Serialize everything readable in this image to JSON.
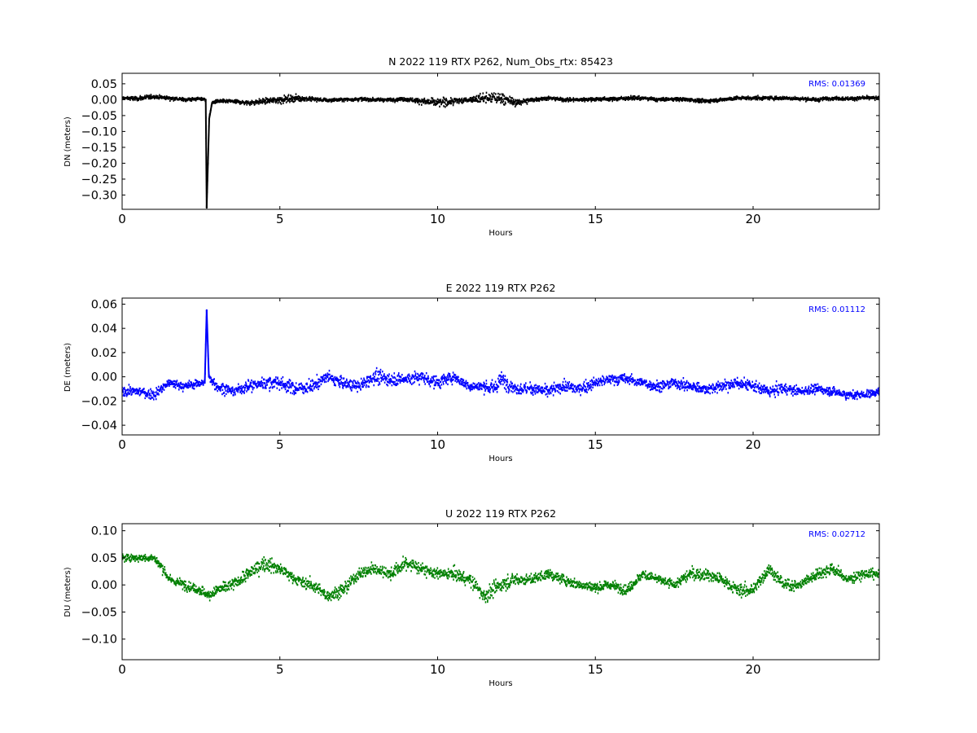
{
  "chart_data": [
    {
      "type": "scatter",
      "title": "N 2022 119 RTX  P262, Num_Obs_rtx: 85423",
      "xlabel": "Hours",
      "ylabel": "DN (meters)",
      "xlim": [
        0,
        24
      ],
      "ylim": [
        -0.345,
        0.083
      ],
      "xticks": [
        0,
        5,
        10,
        15,
        20
      ],
      "yticks": [
        0.05,
        0.0,
        -0.05,
        -0.1,
        -0.15,
        -0.2,
        -0.25,
        -0.3
      ],
      "ytick_labels": [
        "0.05",
        "0.00",
        "−0.05",
        "−0.10",
        "−0.15",
        "−0.20",
        "−0.25",
        "−0.30"
      ],
      "annotation": "RMS:  0.01369",
      "annotation_color": "#0000ff",
      "grid": false,
      "series": [
        {
          "color": "#000000",
          "x": [
            0,
            0.5,
            1,
            1.5,
            2,
            2.5,
            2.65,
            2.68,
            2.72,
            2.76,
            2.85,
            3,
            3.5,
            4,
            4.5,
            5,
            5.5,
            6,
            6.5,
            7,
            7.5,
            8,
            8.5,
            9,
            9.5,
            10,
            10.5,
            11,
            11.5,
            12,
            12.5,
            13,
            13.5,
            14,
            14.5,
            15,
            15.5,
            16,
            16.5,
            17,
            17.5,
            18,
            18.5,
            19,
            19.5,
            20,
            20.5,
            21,
            21.5,
            22,
            22.5,
            23,
            23.5,
            24
          ],
          "y": [
            0.005,
            0.003,
            0.01,
            0.005,
            0.0,
            0.003,
            0.0,
            -0.34,
            -0.2,
            -0.06,
            -0.01,
            -0.005,
            -0.005,
            -0.01,
            -0.005,
            0.0,
            0.005,
            0.002,
            -0.002,
            0.0,
            0.002,
            0.0,
            0.0,
            0.002,
            -0.005,
            -0.01,
            -0.005,
            0.0,
            0.005,
            0.005,
            -0.01,
            0.0,
            0.005,
            0.0,
            0.0,
            0.002,
            0.002,
            0.005,
            0.005,
            0.0,
            0.002,
            0.0,
            -0.005,
            0.0,
            0.005,
            0.005,
            0.005,
            0.005,
            0.003,
            0.0,
            0.005,
            0.003,
            0.005,
            0.005
          ],
          "spread": [
            0.012,
            0.015,
            0.014,
            0.013,
            0.012,
            0.012,
            0.012,
            0.0,
            0.0,
            0.02,
            0.015,
            0.012,
            0.012,
            0.015,
            0.02,
            0.025,
            0.022,
            0.015,
            0.012,
            0.012,
            0.012,
            0.012,
            0.012,
            0.013,
            0.02,
            0.03,
            0.025,
            0.018,
            0.035,
            0.04,
            0.025,
            0.015,
            0.012,
            0.012,
            0.012,
            0.012,
            0.012,
            0.012,
            0.012,
            0.012,
            0.012,
            0.012,
            0.012,
            0.012,
            0.012,
            0.012,
            0.012,
            0.012,
            0.012,
            0.012,
            0.012,
            0.012,
            0.012,
            0.012
          ]
        }
      ]
    },
    {
      "type": "scatter",
      "title": "E 2022 119 RTX  P262",
      "xlabel": "Hours",
      "ylabel": "DE (meters)",
      "xlim": [
        0,
        24
      ],
      "ylim": [
        -0.048,
        0.065
      ],
      "xticks": [
        0,
        5,
        10,
        15,
        20
      ],
      "yticks": [
        0.06,
        0.04,
        0.02,
        0.0,
        -0.02,
        -0.04
      ],
      "ytick_labels": [
        "0.06",
        "0.04",
        "0.02",
        "0.00",
        "−0.02",
        "−0.04"
      ],
      "annotation": "RMS:  0.01112",
      "annotation_color": "#0000ff",
      "grid": false,
      "series": [
        {
          "color": "#0000ff",
          "x": [
            0,
            0.5,
            1,
            1.5,
            2,
            2.5,
            2.62,
            2.68,
            2.75,
            3,
            3.5,
            4,
            4.5,
            5,
            5.5,
            6,
            6.5,
            7,
            7.5,
            8,
            8.5,
            9,
            9.5,
            10,
            10.5,
            11,
            11.5,
            11.8,
            12,
            12.5,
            13,
            13.5,
            14,
            14.5,
            15,
            15.5,
            16,
            16.5,
            17,
            17.5,
            18,
            18.5,
            19,
            19.5,
            20,
            20.5,
            21,
            21.5,
            22,
            22.5,
            23,
            23.5,
            24
          ],
          "y": [
            -0.012,
            -0.012,
            -0.015,
            -0.005,
            -0.008,
            -0.005,
            -0.005,
            0.055,
            0.0,
            -0.008,
            -0.012,
            -0.008,
            -0.005,
            -0.005,
            -0.01,
            -0.008,
            0.0,
            -0.005,
            -0.008,
            0.0,
            -0.002,
            -0.002,
            0.0,
            -0.005,
            0.0,
            -0.008,
            -0.008,
            -0.01,
            -0.002,
            -0.01,
            -0.01,
            -0.012,
            -0.008,
            -0.01,
            -0.005,
            -0.002,
            -0.002,
            -0.005,
            -0.008,
            -0.005,
            -0.008,
            -0.01,
            -0.008,
            -0.005,
            -0.008,
            -0.012,
            -0.01,
            -0.012,
            -0.01,
            -0.012,
            -0.015,
            -0.015,
            -0.012
          ],
          "spread": [
            0.008,
            0.008,
            0.01,
            0.008,
            0.008,
            0.008,
            0.008,
            0.0,
            0.01,
            0.01,
            0.01,
            0.01,
            0.012,
            0.012,
            0.012,
            0.012,
            0.012,
            0.01,
            0.01,
            0.012,
            0.012,
            0.012,
            0.012,
            0.012,
            0.01,
            0.008,
            0.01,
            0.015,
            0.015,
            0.01,
            0.01,
            0.01,
            0.01,
            0.01,
            0.01,
            0.01,
            0.01,
            0.01,
            0.01,
            0.01,
            0.01,
            0.01,
            0.01,
            0.01,
            0.01,
            0.01,
            0.01,
            0.008,
            0.008,
            0.008,
            0.008,
            0.008,
            0.008
          ]
        }
      ]
    },
    {
      "type": "scatter",
      "title": "U 2022 119 RTX  P262",
      "xlabel": "Hours",
      "ylabel": "DU (meters)",
      "xlim": [
        0,
        24
      ],
      "ylim": [
        -0.138,
        0.113
      ],
      "xticks": [
        0,
        5,
        10,
        15,
        20
      ],
      "yticks": [
        0.1,
        0.05,
        0.0,
        -0.05,
        -0.1
      ],
      "ytick_labels": [
        "0.10",
        "0.05",
        "0.00",
        "−0.05",
        "−0.10"
      ],
      "annotation": "RMS:  0.02712",
      "annotation_color": "#0000ff",
      "grid": false,
      "series": [
        {
          "color": "#008000",
          "x": [
            0,
            0.5,
            1,
            1.3,
            1.5,
            2,
            2.5,
            2.75,
            3,
            3.5,
            4,
            4.5,
            5,
            5.5,
            6,
            6.5,
            7,
            7.5,
            8,
            8.5,
            9,
            9.5,
            10,
            10.5,
            11,
            11.5,
            12,
            12.5,
            13,
            13.5,
            14,
            14.5,
            15,
            15.5,
            16,
            16.5,
            17,
            17.5,
            18,
            18.5,
            19,
            19.5,
            20,
            20.5,
            21,
            21.5,
            22,
            22.5,
            23,
            23.5,
            24
          ],
          "y": [
            0.05,
            0.05,
            0.05,
            0.03,
            0.01,
            0.0,
            -0.01,
            -0.02,
            -0.01,
            0.0,
            0.02,
            0.04,
            0.03,
            0.01,
            0.0,
            -0.02,
            -0.01,
            0.02,
            0.03,
            0.02,
            0.04,
            0.03,
            0.02,
            0.02,
            0.01,
            -0.02,
            0.0,
            0.01,
            0.01,
            0.02,
            0.01,
            0.0,
            -0.005,
            0.0,
            -0.01,
            0.02,
            0.01,
            0.0,
            0.02,
            0.02,
            0.01,
            -0.01,
            -0.01,
            0.03,
            0.0,
            0.0,
            0.02,
            0.03,
            0.01,
            0.02,
            0.02
          ],
          "spread": [
            0.015,
            0.015,
            0.015,
            0.02,
            0.02,
            0.02,
            0.02,
            0.02,
            0.025,
            0.025,
            0.025,
            0.03,
            0.025,
            0.02,
            0.025,
            0.025,
            0.025,
            0.025,
            0.025,
            0.025,
            0.03,
            0.025,
            0.02,
            0.025,
            0.025,
            0.035,
            0.03,
            0.025,
            0.02,
            0.02,
            0.02,
            0.02,
            0.02,
            0.02,
            0.02,
            0.02,
            0.02,
            0.02,
            0.025,
            0.025,
            0.025,
            0.025,
            0.025,
            0.025,
            0.02,
            0.02,
            0.025,
            0.025,
            0.02,
            0.02,
            0.02
          ]
        }
      ]
    }
  ]
}
